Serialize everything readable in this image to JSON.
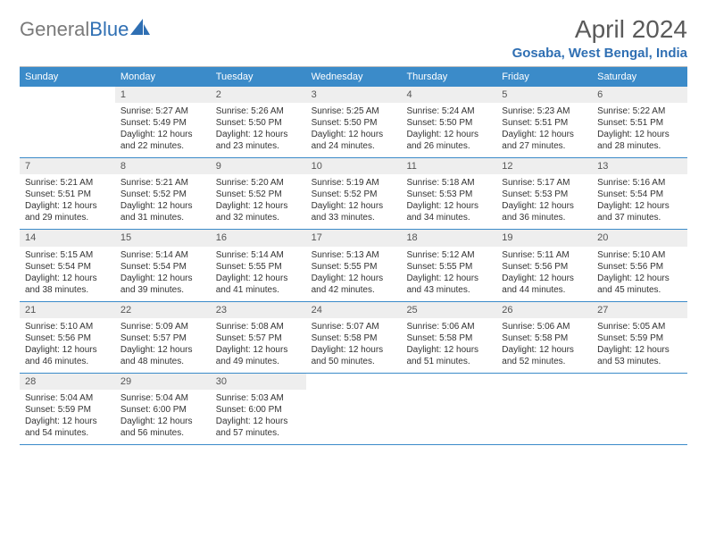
{
  "logo": {
    "text_gray": "General",
    "text_blue": "Blue"
  },
  "title": "April 2024",
  "location": "Gosaba, West Bengal, India",
  "weekdays": [
    "Sunday",
    "Monday",
    "Tuesday",
    "Wednesday",
    "Thursday",
    "Friday",
    "Saturday"
  ],
  "colors": {
    "header_bar": "#3b8bc9",
    "week_divider": "#3b8bc9",
    "daynum_bg": "#eeeeee",
    "logo_gray": "#7a7a7a",
    "logo_blue": "#2f6fb3",
    "title_gray": "#5a5a5a"
  },
  "weeks": [
    [
      {
        "n": "",
        "sr": "",
        "ss": "",
        "dl": ""
      },
      {
        "n": "1",
        "sr": "Sunrise: 5:27 AM",
        "ss": "Sunset: 5:49 PM",
        "dl": "Daylight: 12 hours and 22 minutes."
      },
      {
        "n": "2",
        "sr": "Sunrise: 5:26 AM",
        "ss": "Sunset: 5:50 PM",
        "dl": "Daylight: 12 hours and 23 minutes."
      },
      {
        "n": "3",
        "sr": "Sunrise: 5:25 AM",
        "ss": "Sunset: 5:50 PM",
        "dl": "Daylight: 12 hours and 24 minutes."
      },
      {
        "n": "4",
        "sr": "Sunrise: 5:24 AM",
        "ss": "Sunset: 5:50 PM",
        "dl": "Daylight: 12 hours and 26 minutes."
      },
      {
        "n": "5",
        "sr": "Sunrise: 5:23 AM",
        "ss": "Sunset: 5:51 PM",
        "dl": "Daylight: 12 hours and 27 minutes."
      },
      {
        "n": "6",
        "sr": "Sunrise: 5:22 AM",
        "ss": "Sunset: 5:51 PM",
        "dl": "Daylight: 12 hours and 28 minutes."
      }
    ],
    [
      {
        "n": "7",
        "sr": "Sunrise: 5:21 AM",
        "ss": "Sunset: 5:51 PM",
        "dl": "Daylight: 12 hours and 29 minutes."
      },
      {
        "n": "8",
        "sr": "Sunrise: 5:21 AM",
        "ss": "Sunset: 5:52 PM",
        "dl": "Daylight: 12 hours and 31 minutes."
      },
      {
        "n": "9",
        "sr": "Sunrise: 5:20 AM",
        "ss": "Sunset: 5:52 PM",
        "dl": "Daylight: 12 hours and 32 minutes."
      },
      {
        "n": "10",
        "sr": "Sunrise: 5:19 AM",
        "ss": "Sunset: 5:52 PM",
        "dl": "Daylight: 12 hours and 33 minutes."
      },
      {
        "n": "11",
        "sr": "Sunrise: 5:18 AM",
        "ss": "Sunset: 5:53 PM",
        "dl": "Daylight: 12 hours and 34 minutes."
      },
      {
        "n": "12",
        "sr": "Sunrise: 5:17 AM",
        "ss": "Sunset: 5:53 PM",
        "dl": "Daylight: 12 hours and 36 minutes."
      },
      {
        "n": "13",
        "sr": "Sunrise: 5:16 AM",
        "ss": "Sunset: 5:54 PM",
        "dl": "Daylight: 12 hours and 37 minutes."
      }
    ],
    [
      {
        "n": "14",
        "sr": "Sunrise: 5:15 AM",
        "ss": "Sunset: 5:54 PM",
        "dl": "Daylight: 12 hours and 38 minutes."
      },
      {
        "n": "15",
        "sr": "Sunrise: 5:14 AM",
        "ss": "Sunset: 5:54 PM",
        "dl": "Daylight: 12 hours and 39 minutes."
      },
      {
        "n": "16",
        "sr": "Sunrise: 5:14 AM",
        "ss": "Sunset: 5:55 PM",
        "dl": "Daylight: 12 hours and 41 minutes."
      },
      {
        "n": "17",
        "sr": "Sunrise: 5:13 AM",
        "ss": "Sunset: 5:55 PM",
        "dl": "Daylight: 12 hours and 42 minutes."
      },
      {
        "n": "18",
        "sr": "Sunrise: 5:12 AM",
        "ss": "Sunset: 5:55 PM",
        "dl": "Daylight: 12 hours and 43 minutes."
      },
      {
        "n": "19",
        "sr": "Sunrise: 5:11 AM",
        "ss": "Sunset: 5:56 PM",
        "dl": "Daylight: 12 hours and 44 minutes."
      },
      {
        "n": "20",
        "sr": "Sunrise: 5:10 AM",
        "ss": "Sunset: 5:56 PM",
        "dl": "Daylight: 12 hours and 45 minutes."
      }
    ],
    [
      {
        "n": "21",
        "sr": "Sunrise: 5:10 AM",
        "ss": "Sunset: 5:56 PM",
        "dl": "Daylight: 12 hours and 46 minutes."
      },
      {
        "n": "22",
        "sr": "Sunrise: 5:09 AM",
        "ss": "Sunset: 5:57 PM",
        "dl": "Daylight: 12 hours and 48 minutes."
      },
      {
        "n": "23",
        "sr": "Sunrise: 5:08 AM",
        "ss": "Sunset: 5:57 PM",
        "dl": "Daylight: 12 hours and 49 minutes."
      },
      {
        "n": "24",
        "sr": "Sunrise: 5:07 AM",
        "ss": "Sunset: 5:58 PM",
        "dl": "Daylight: 12 hours and 50 minutes."
      },
      {
        "n": "25",
        "sr": "Sunrise: 5:06 AM",
        "ss": "Sunset: 5:58 PM",
        "dl": "Daylight: 12 hours and 51 minutes."
      },
      {
        "n": "26",
        "sr": "Sunrise: 5:06 AM",
        "ss": "Sunset: 5:58 PM",
        "dl": "Daylight: 12 hours and 52 minutes."
      },
      {
        "n": "27",
        "sr": "Sunrise: 5:05 AM",
        "ss": "Sunset: 5:59 PM",
        "dl": "Daylight: 12 hours and 53 minutes."
      }
    ],
    [
      {
        "n": "28",
        "sr": "Sunrise: 5:04 AM",
        "ss": "Sunset: 5:59 PM",
        "dl": "Daylight: 12 hours and 54 minutes."
      },
      {
        "n": "29",
        "sr": "Sunrise: 5:04 AM",
        "ss": "Sunset: 6:00 PM",
        "dl": "Daylight: 12 hours and 56 minutes."
      },
      {
        "n": "30",
        "sr": "Sunrise: 5:03 AM",
        "ss": "Sunset: 6:00 PM",
        "dl": "Daylight: 12 hours and 57 minutes."
      },
      {
        "n": "",
        "sr": "",
        "ss": "",
        "dl": ""
      },
      {
        "n": "",
        "sr": "",
        "ss": "",
        "dl": ""
      },
      {
        "n": "",
        "sr": "",
        "ss": "",
        "dl": ""
      },
      {
        "n": "",
        "sr": "",
        "ss": "",
        "dl": ""
      }
    ]
  ]
}
